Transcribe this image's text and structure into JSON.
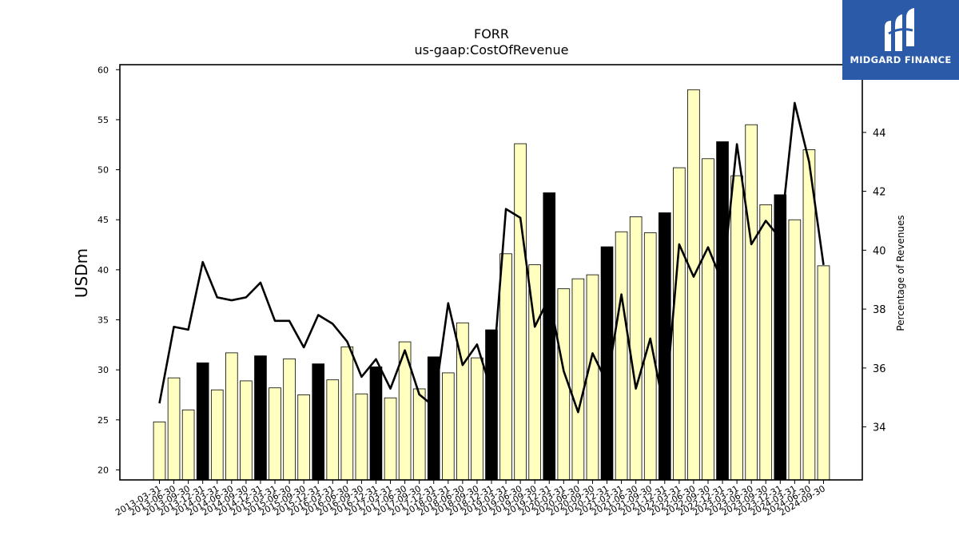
{
  "chart_data": {
    "type": "bar",
    "title": "FORR",
    "subtitle": "us-gaap:CostOfRevenue",
    "ylabel": "USDm",
    "y2label": "Percentage of Revenues",
    "ylim": [
      19,
      60.5
    ],
    "y2lim": [
      32.2,
      46.3
    ],
    "yticks": [
      20,
      25,
      30,
      35,
      40,
      45,
      50,
      55,
      60
    ],
    "y2ticks": [
      34,
      36,
      38,
      40,
      42,
      44
    ],
    "categories": [
      "2013-03-31",
      "2013-06-30",
      "2013-09-30",
      "2013-12-31",
      "2014-03-31",
      "2014-06-30",
      "2014-09-30",
      "2014-12-31",
      "2015-03-31",
      "2015-06-30",
      "2015-09-30",
      "2015-12-31",
      "2016-03-31",
      "2016-06-30",
      "2016-09-30",
      "2016-12-31",
      "2017-03-31",
      "2017-06-30",
      "2017-09-30",
      "2017-12-31",
      "2018-03-31",
      "2018-06-30",
      "2018-09-30",
      "2018-12-31",
      "2019-03-31",
      "2019-06-30",
      "2019-09-30",
      "2019-12-31",
      "2020-03-31",
      "2020-06-30",
      "2020-09-30",
      "2020-12-31",
      "2021-03-31",
      "2021-06-30",
      "2021-09-30",
      "2021-12-31",
      "2022-03-31",
      "2022-06-30",
      "2022-09-30",
      "2022-12-31",
      "2023-03-31",
      "2023-06-30",
      "2023-09-30",
      "2023-12-31",
      "2024-03-31",
      "2024-06-30",
      "2024-09-30"
    ],
    "series": [
      {
        "kind": "bar",
        "axis": "left",
        "values": [
          24.8,
          29.2,
          26.0,
          30.7,
          28.0,
          31.7,
          28.9,
          31.4,
          28.2,
          31.1,
          27.5,
          30.6,
          29.0,
          32.3,
          27.6,
          30.3,
          27.2,
          32.8,
          28.1,
          31.3,
          29.7,
          34.7,
          31.2,
          34.0,
          41.6,
          52.6,
          40.5,
          47.7,
          38.1,
          39.1,
          39.5,
          42.3,
          43.8,
          45.3,
          43.7,
          45.7,
          50.2,
          58.0,
          51.1,
          52.8,
          49.4,
          54.5,
          46.5,
          47.5,
          45.0,
          52.0,
          40.4
        ]
      },
      {
        "kind": "line",
        "axis": "right",
        "values": [
          34.8,
          37.4,
          37.3,
          39.6,
          38.4,
          38.3,
          38.4,
          38.9,
          37.6,
          37.6,
          36.7,
          37.8,
          37.5,
          36.9,
          35.7,
          36.3,
          35.3,
          36.6,
          35.1,
          34.7,
          38.2,
          36.1,
          36.8,
          35.2,
          41.4,
          41.1,
          37.4,
          38.4,
          35.9,
          34.5,
          36.5,
          35.5,
          38.5,
          35.3,
          37.0,
          34.5,
          40.2,
          39.1,
          40.1,
          38.9,
          43.6,
          40.2,
          41.0,
          40.4,
          45.0,
          43.0,
          39.5
        ]
      }
    ],
    "highlight_quarter": "12-31",
    "colors": {
      "bar": "#ffffc0",
      "bar_highlight": "#000000",
      "line": "#000000"
    },
    "grid": false
  },
  "logo": {
    "text": "MIDGARD FINANCE"
  }
}
